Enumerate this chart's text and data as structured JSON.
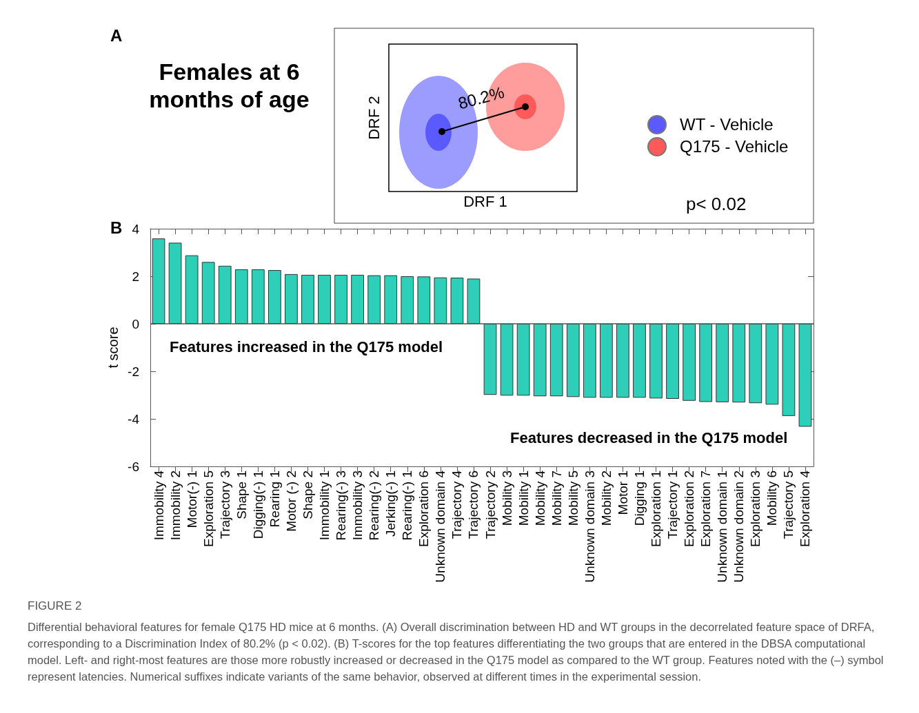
{
  "chart_data": [
    {
      "type": "other",
      "title": "Females at 6 months of age",
      "xlabel": "DRF 1",
      "ylabel": "DRF 2",
      "annotations": [
        "A",
        "80.2%",
        "p< 0.02"
      ],
      "legend": "right",
      "series": [
        {
          "name": "WT - Vehicle",
          "color": "#5a5aff"
        },
        {
          "name": "Q175 - Vehicle",
          "color": "#ff5a5a"
        }
      ]
    },
    {
      "type": "bar",
      "ylabel": "t score",
      "ylim": [
        -6,
        4
      ],
      "yticks": [
        -6,
        -4,
        -2,
        0,
        2,
        4
      ],
      "grid": false,
      "categories": [
        "Immobility 4",
        "Immobility 2",
        "Motor(-) 1",
        "Exploration 5",
        "Trajectory 3",
        "Shape 1",
        "Digging(-) 1",
        "Rearing 1",
        "Motor (-) 2",
        "Shape 2",
        "Immobility 1",
        "Rearing(-) 3",
        "Immobility 3",
        "Rearing(-) 2",
        "Jerking(-) 1",
        "Rearing(-) 1",
        "Exploration 6",
        "Unknown domain 4",
        "Trajectory 4",
        "Trajectory 6",
        "Trajectory 2",
        "Mobility 3",
        "Mobility 1",
        "Mobility 4",
        "Mobility 7",
        "Mobility 5",
        "Unknown domain 3",
        "Mobility 2",
        "Motor 1",
        "Digging 1",
        "Exploration 1",
        "Trajectory 1",
        "Exploration 2",
        "Exploration 7",
        "Unknown domain 1",
        "Unknown domain 2",
        "Exploration 3",
        "Mobility 6",
        "Trajectory 5",
        "Exploration 4"
      ],
      "values": [
        3.59,
        3.41,
        2.88,
        2.6,
        2.44,
        2.29,
        2.29,
        2.26,
        2.09,
        2.06,
        2.06,
        2.06,
        2.06,
        2.04,
        2.04,
        2.0,
        1.99,
        1.95,
        1.94,
        1.9,
        -2.99,
        -3.02,
        -3.02,
        -3.05,
        -3.05,
        -3.08,
        -3.11,
        -3.11,
        -3.11,
        -3.11,
        -3.14,
        -3.16,
        -3.24,
        -3.29,
        -3.3,
        -3.31,
        -3.34,
        -3.4,
        -3.88,
        -4.33
      ],
      "color": "#2dcfb8",
      "ref_lines": [
        {
          "axis": "y",
          "value": 0,
          "label": null
        }
      ],
      "annotations": [
        "B",
        "Features increased in the Q175 model",
        "Features decreased in the Q175 model",
        "FIGURE 2",
        "Differential behavioral features for female Q175 HD mice at 6 months. (A) Overall discrimination between HD and WT groups in the decorrelated feature space of DRFA, corresponding to a Discrimination Index of 80.2% (p < 0.02). (B) T-scores for the top features differentiating the two groups that are entered in the DBSA computational model. Left- and right-most features are those more robustly increased or decreased in the Q175 model as compared to the WT group. Features noted with the (–) symbol represent latencies. Numerical suffixes indicate variants of the same behavior, observed at different times in the experimental session."
      ]
    }
  ]
}
